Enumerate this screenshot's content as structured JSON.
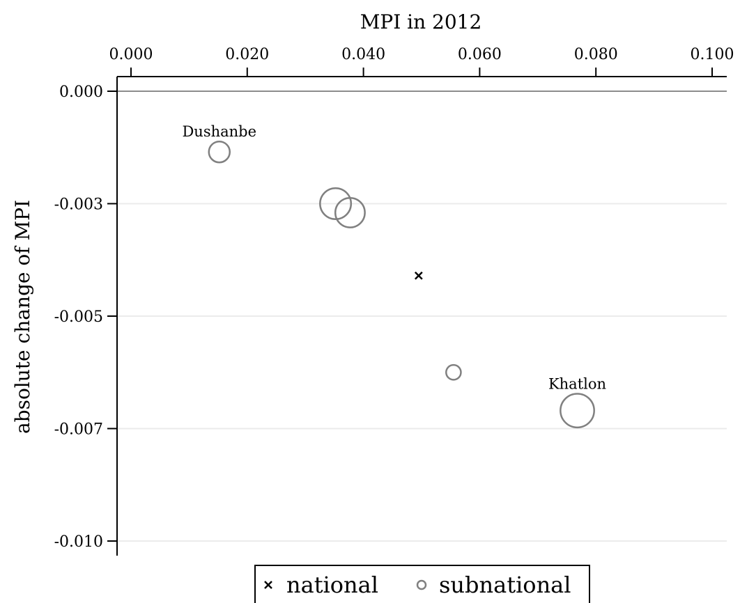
{
  "chart_data": {
    "type": "scatter",
    "xlabel": "MPI in 2012",
    "ylabel": "absolute change of MPI",
    "xlim": [
      0.0,
      0.1
    ],
    "ylim": [
      -0.0101,
      0.0
    ],
    "x_ticks": [
      0.0,
      0.02,
      0.04,
      0.06,
      0.08,
      0.1
    ],
    "x_tick_labels": [
      "0.000",
      "0.020",
      "0.040",
      "0.060",
      "0.080",
      "0.100"
    ],
    "y_ticks": [
      0.0,
      -0.0025,
      -0.005,
      -0.0075,
      -0.01
    ],
    "y_tick_labels": [
      "0.000",
      "-0.003",
      "-0.005",
      "-0.007",
      "-0.010"
    ],
    "reference_line_y": 0.0,
    "grid": "horizontal",
    "x_axis_position": "top",
    "legend": {
      "placement": "bottom-center",
      "entries": [
        {
          "label": "national",
          "marker": "x"
        },
        {
          "label": "subnational",
          "marker": "hollow-circle"
        }
      ]
    },
    "colors": {
      "national": "#000000",
      "subnational": "#808080",
      "grid": "#ebebeb",
      "reference": "#8c8c8c"
    },
    "series": [
      {
        "name": "national",
        "points": [
          {
            "x": 0.0495,
            "y": -0.0041
          }
        ]
      },
      {
        "name": "subnational",
        "points": [
          {
            "x": 0.0152,
            "y": -0.00135,
            "size": 1.0,
            "label": "Dushanbe"
          },
          {
            "x": 0.0352,
            "y": -0.0025,
            "size": 2.2,
            "label": ""
          },
          {
            "x": 0.0377,
            "y": -0.0027,
            "size": 2.0,
            "label": ""
          },
          {
            "x": 0.0555,
            "y": -0.00625,
            "size": 0.5,
            "label": ""
          },
          {
            "x": 0.0768,
            "y": -0.0071,
            "size": 2.6,
            "label": "Khatlon"
          }
        ]
      }
    ]
  }
}
